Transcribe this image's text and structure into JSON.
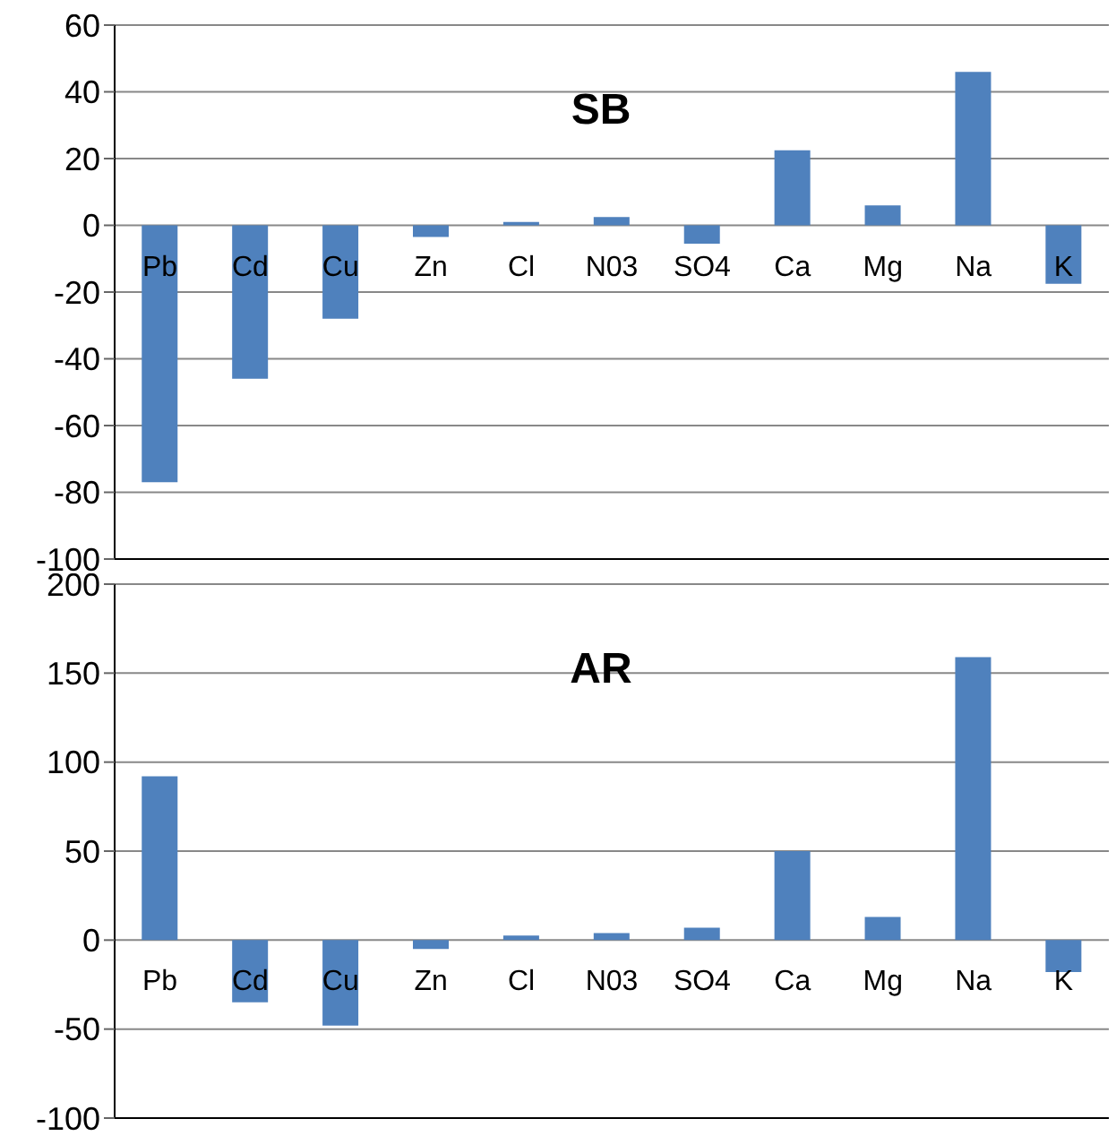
{
  "chart_data": [
    {
      "type": "bar",
      "title": "SB",
      "categories": [
        "Pb",
        "Cd",
        "Cu",
        "Zn",
        "Cl",
        "N03",
        "SO4",
        "Ca",
        "Mg",
        "Na",
        "K"
      ],
      "values": [
        -77,
        -46,
        -28,
        -3.5,
        1,
        2.5,
        -5.5,
        22.5,
        6,
        46,
        -17.5
      ],
      "color": "#4f81bd",
      "ylim": [
        -100,
        60
      ],
      "yticks": [
        -100,
        -80,
        -60,
        -40,
        -20,
        0,
        20,
        40,
        60
      ],
      "grid": "y"
    },
    {
      "type": "bar",
      "title": "AR",
      "categories": [
        "Pb",
        "Cd",
        "Cu",
        "Zn",
        "Cl",
        "N03",
        "SO4",
        "Ca",
        "Mg",
        "Na",
        "K"
      ],
      "values": [
        92,
        -35,
        -48,
        -5,
        2.5,
        4,
        7,
        50,
        13,
        159,
        -18
      ],
      "color": "#4f81bd",
      "ylim": [
        -100,
        200
      ],
      "yticks": [
        -100,
        -50,
        0,
        50,
        100,
        150,
        200
      ],
      "grid": "y"
    }
  ]
}
